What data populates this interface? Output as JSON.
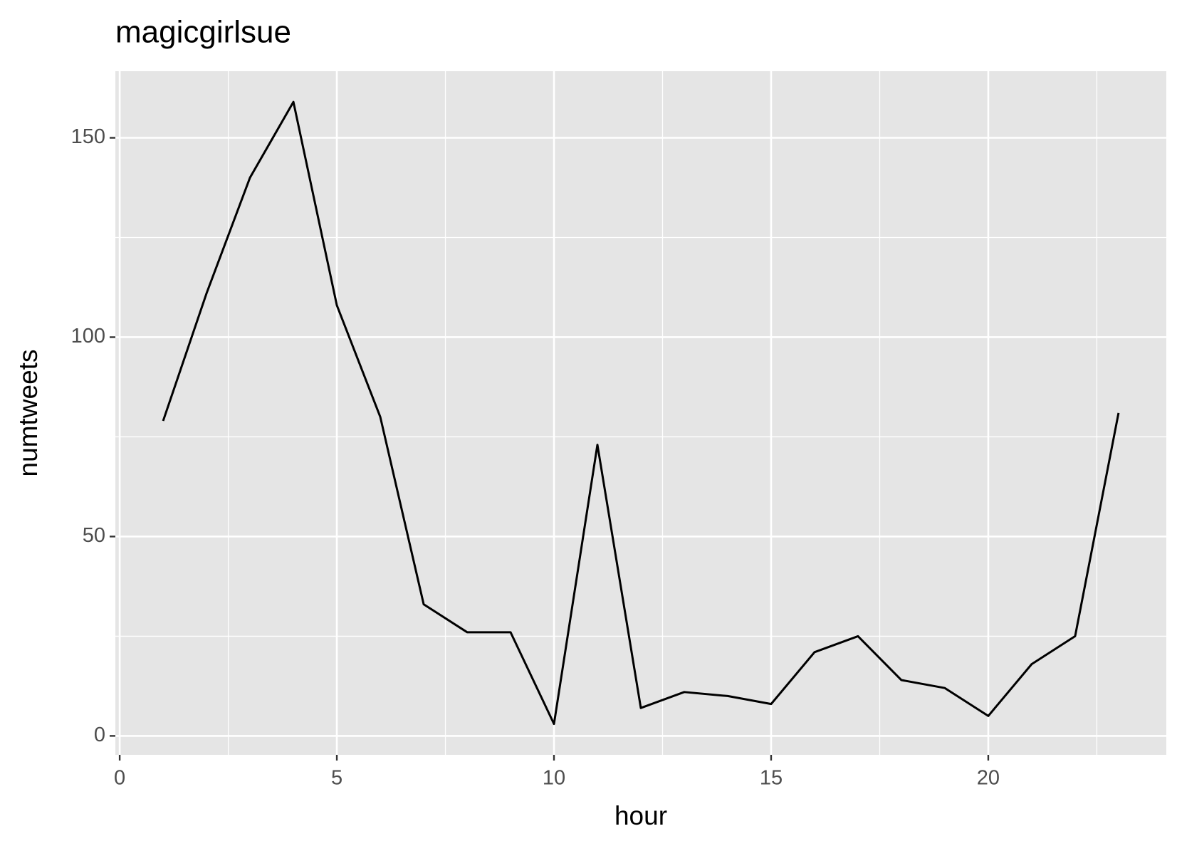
{
  "chart_data": {
    "type": "line",
    "title": "magicgirlsue",
    "x_label": "hour",
    "y_label": "numtweets",
    "x": [
      1,
      2,
      3,
      4,
      5,
      6,
      7,
      8,
      9,
      10,
      11,
      12,
      13,
      14,
      15,
      16,
      17,
      18,
      19,
      20,
      21,
      22,
      23
    ],
    "series": [
      {
        "name": "numtweets",
        "color": "#000000",
        "values": [
          79,
          111,
          140,
          159,
          108,
          80,
          33,
          26,
          26,
          3,
          73,
          7,
          11,
          10,
          8,
          21,
          25,
          14,
          12,
          5,
          18,
          25,
          81
        ]
      }
    ],
    "xlim": [
      -0.1,
      24.1
    ],
    "xticks": [
      0,
      5,
      10,
      15,
      20
    ],
    "ylim": [
      -4.75,
      166.7
    ],
    "yticks": [
      0,
      50,
      100,
      150
    ],
    "grid": true
  }
}
